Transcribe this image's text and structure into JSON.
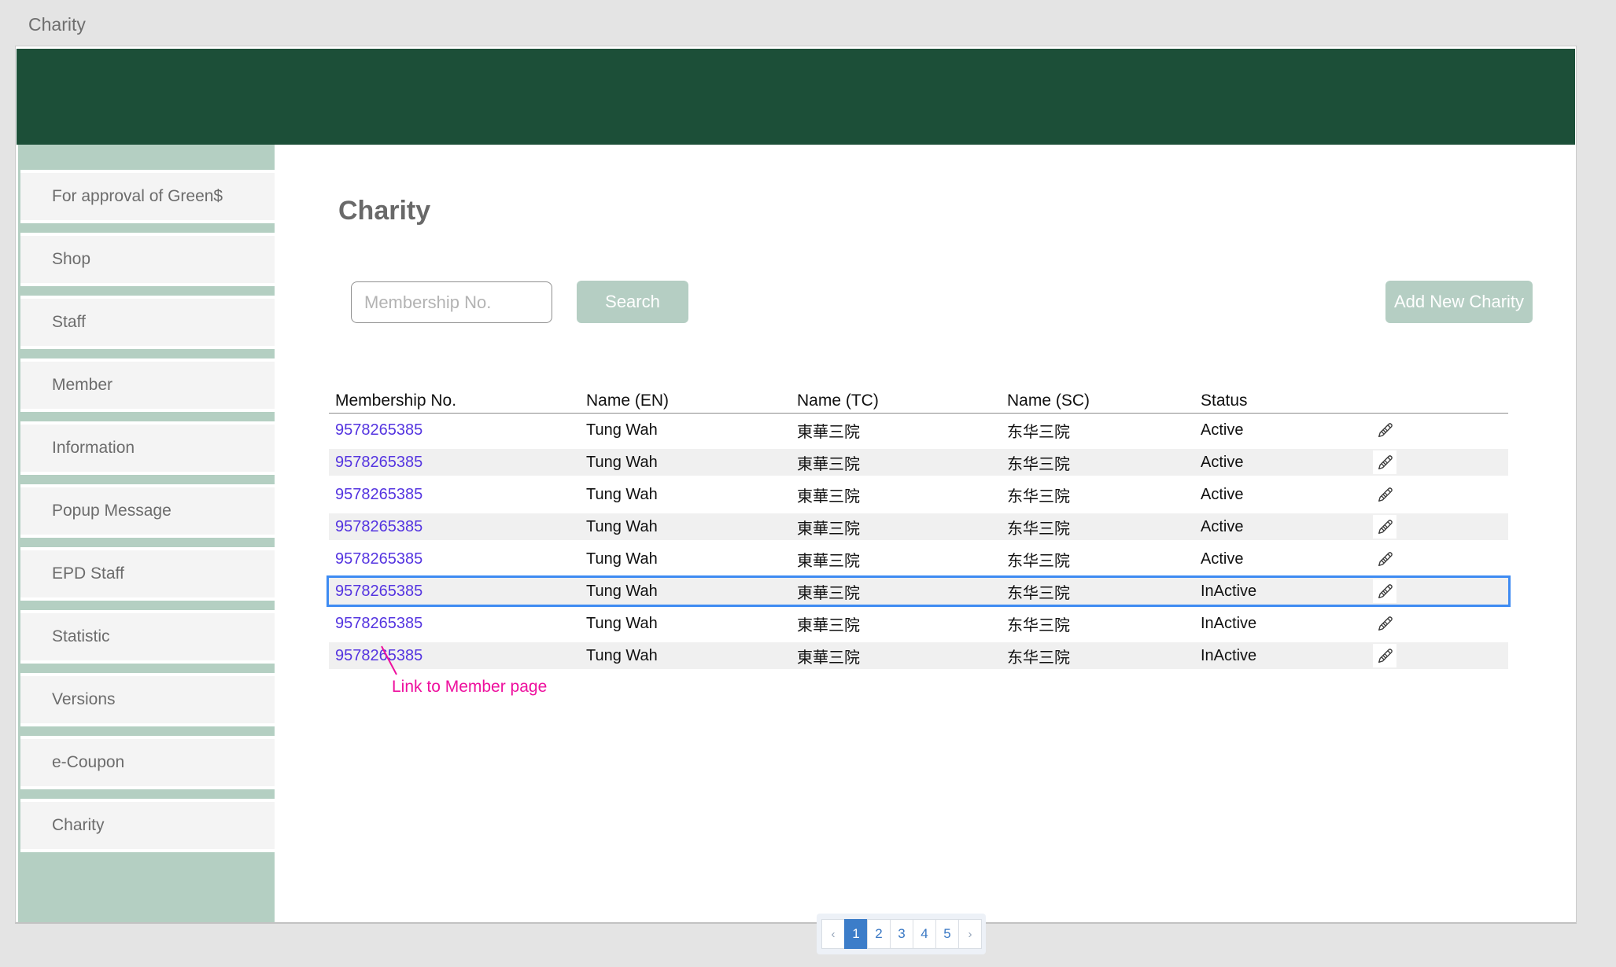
{
  "page_label": "Charity",
  "sidebar": {
    "items": [
      "For approval of Green$",
      "Shop",
      "Staff",
      "Member",
      "Information",
      "Popup Message",
      "EPD Staff",
      "Statistic",
      "Versions",
      "e-Coupon",
      "Charity"
    ]
  },
  "main": {
    "title": "Charity",
    "search": {
      "placeholder": "Membership No.",
      "button": "Search"
    },
    "add_button": "Add New Charity",
    "table": {
      "columns": [
        "Membership No.",
        "Name (EN)",
        "Name (TC)",
        "Name (SC)",
        "Status"
      ],
      "rows": [
        {
          "membership_no": "9578265385",
          "name_en": "Tung Wah",
          "name_tc": "東華三院",
          "name_sc": "东华三院",
          "status": "Active",
          "highlighted": false
        },
        {
          "membership_no": "9578265385",
          "name_en": "Tung Wah",
          "name_tc": "東華三院",
          "name_sc": "东华三院",
          "status": "Active",
          "highlighted": false
        },
        {
          "membership_no": "9578265385",
          "name_en": "Tung Wah",
          "name_tc": "東華三院",
          "name_sc": "东华三院",
          "status": "Active",
          "highlighted": false
        },
        {
          "membership_no": "9578265385",
          "name_en": "Tung Wah",
          "name_tc": "東華三院",
          "name_sc": "东华三院",
          "status": "Active",
          "highlighted": false
        },
        {
          "membership_no": "9578265385",
          "name_en": "Tung Wah",
          "name_tc": "東華三院",
          "name_sc": "东华三院",
          "status": "Active",
          "highlighted": false
        },
        {
          "membership_no": "9578265385",
          "name_en": "Tung Wah",
          "name_tc": "東華三院",
          "name_sc": "东华三院",
          "status": "InActive",
          "highlighted": true
        },
        {
          "membership_no": "9578265385",
          "name_en": "Tung Wah",
          "name_tc": "東華三院",
          "name_sc": "东华三院",
          "status": "InActive",
          "highlighted": false
        },
        {
          "membership_no": "9578265385",
          "name_en": "Tung Wah",
          "name_tc": "東華三院",
          "name_sc": "东华三院",
          "status": "InActive",
          "highlighted": false
        }
      ],
      "edit_icon": "pencil-icon"
    },
    "annotation": "Link to Member page",
    "pagination": {
      "prev": "‹",
      "pages": [
        "1",
        "2",
        "3",
        "4",
        "5"
      ],
      "active_page": "1",
      "next": "›"
    }
  },
  "colors": {
    "header_green": "#1c4f38",
    "sidebar_green": "#b4cfc2",
    "button_green": "#b5cec3",
    "link_violet": "#5434e0",
    "highlight_border": "#3e8bf2",
    "annotation_pink": "#ee109e",
    "pagination_active_blue": "#3c7dc9",
    "page_background": "#e4e4e4"
  }
}
